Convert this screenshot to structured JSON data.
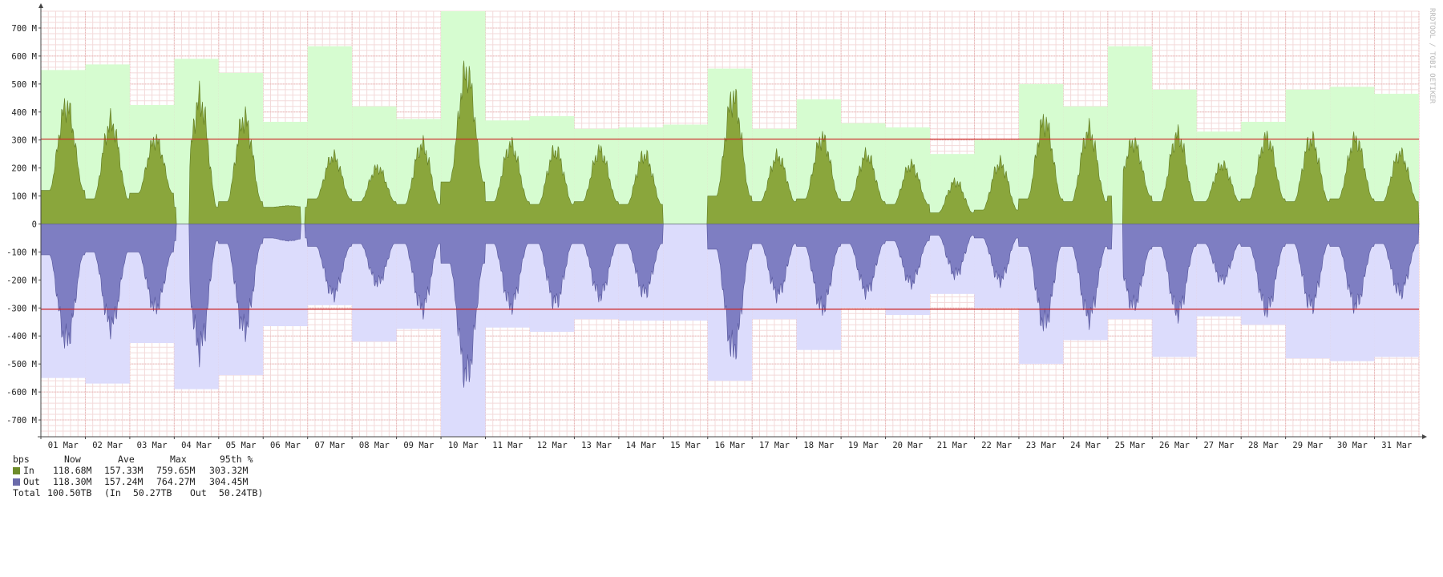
{
  "chart_data": {
    "type": "area",
    "watermark": "RRDTOOL / TOBI OETIKER",
    "y_unit": "bps",
    "ylim": [
      -760,
      760
    ],
    "y_ticks": [
      {
        "v": 700,
        "label": "700 M"
      },
      {
        "v": 600,
        "label": "600 M"
      },
      {
        "v": 500,
        "label": "500 M"
      },
      {
        "v": 400,
        "label": "400 M"
      },
      {
        "v": 300,
        "label": "300 M"
      },
      {
        "v": 200,
        "label": "200 M"
      },
      {
        "v": 100,
        "label": "100 M"
      },
      {
        "v": 0,
        "label": "0"
      },
      {
        "v": -100,
        "label": "-100 M"
      },
      {
        "v": -200,
        "label": "-200 M"
      },
      {
        "v": -300,
        "label": "-300 M"
      },
      {
        "v": -400,
        "label": "-400 M"
      },
      {
        "v": -500,
        "label": "-500 M"
      },
      {
        "v": -600,
        "label": "-600 M"
      },
      {
        "v": -700,
        "label": "-700 M"
      }
    ],
    "x_labels": [
      "01 Mar",
      "02 Mar",
      "03 Mar",
      "04 Mar",
      "05 Mar",
      "06 Mar",
      "07 Mar",
      "08 Mar",
      "09 Mar",
      "10 Mar",
      "11 Mar",
      "12 Mar",
      "13 Mar",
      "14 Mar",
      "15 Mar",
      "16 Mar",
      "17 Mar",
      "18 Mar",
      "19 Mar",
      "20 Mar",
      "21 Mar",
      "22 Mar",
      "23 Mar",
      "24 Mar",
      "25 Mar",
      "26 Mar",
      "27 Mar",
      "28 Mar",
      "29 Mar",
      "30 Mar",
      "31 Mar"
    ],
    "percentile95": {
      "in": 303.32,
      "out": 304.45
    },
    "daily_max": [
      {
        "day": "01 Mar",
        "in": 550,
        "out": 550
      },
      {
        "day": "02 Mar",
        "in": 570,
        "out": 570
      },
      {
        "day": "03 Mar",
        "in": 425,
        "out": 425
      },
      {
        "day": "04 Mar",
        "in": 590,
        "out": 590
      },
      {
        "day": "05 Mar",
        "in": 540,
        "out": 540
      },
      {
        "day": "06 Mar",
        "in": 365,
        "out": 365
      },
      {
        "day": "07 Mar",
        "in": 635,
        "out": 290
      },
      {
        "day": "08 Mar",
        "in": 420,
        "out": 420
      },
      {
        "day": "09 Mar",
        "in": 375,
        "out": 375
      },
      {
        "day": "10 Mar",
        "in": 760,
        "out": 760
      },
      {
        "day": "11 Mar",
        "in": 370,
        "out": 370
      },
      {
        "day": "12 Mar",
        "in": 385,
        "out": 385
      },
      {
        "day": "13 Mar",
        "in": 340,
        "out": 340
      },
      {
        "day": "14 Mar",
        "in": 345,
        "out": 345
      },
      {
        "day": "15 Mar",
        "in": 355,
        "out": 345
      },
      {
        "day": "16 Mar",
        "in": 555,
        "out": 560
      },
      {
        "day": "17 Mar",
        "in": 340,
        "out": 340
      },
      {
        "day": "18 Mar",
        "in": 445,
        "out": 450
      },
      {
        "day": "19 Mar",
        "in": 360,
        "out": 300
      },
      {
        "day": "20 Mar",
        "in": 345,
        "out": 325
      },
      {
        "day": "21 Mar",
        "in": 250,
        "out": 250
      },
      {
        "day": "22 Mar",
        "in": 300,
        "out": 300
      },
      {
        "day": "23 Mar",
        "in": 500,
        "out": 500
      },
      {
        "day": "24 Mar",
        "in": 420,
        "out": 415
      },
      {
        "day": "25 Mar",
        "in": 635,
        "out": 340
      },
      {
        "day": "26 Mar",
        "in": 480,
        "out": 475
      },
      {
        "day": "27 Mar",
        "in": 330,
        "out": 330
      },
      {
        "day": "28 Mar",
        "in": 365,
        "out": 360
      },
      {
        "day": "29 Mar",
        "in": 480,
        "out": 480
      },
      {
        "day": "30 Mar",
        "in": 490,
        "out": 490
      },
      {
        "day": "31 Mar",
        "in": 465,
        "out": 475
      }
    ],
    "series": [
      {
        "name": "In",
        "color": "#8aa63c",
        "max_color": "#d6fcd0"
      },
      {
        "name": "Out",
        "color": "#7e7ec2",
        "max_color": "#dcdcfc"
      }
    ],
    "daily_pattern": {
      "baseline_in": [
        120,
        90,
        110,
        60,
        80,
        60,
        90,
        80,
        70,
        150,
        80,
        70,
        80,
        70,
        80,
        100,
        80,
        90,
        80,
        70,
        40,
        50,
        90,
        80,
        100,
        80,
        80,
        90,
        80,
        90,
        80
      ],
      "peak_in": [
        420,
        360,
        300,
        440,
        375,
        65,
        240,
        200,
        280,
        540,
        280,
        260,
        260,
        245,
        0,
        450,
        240,
        305,
        245,
        210,
        150,
        215,
        365,
        330,
        290,
        315,
        210,
        305,
        300,
        300,
        250
      ],
      "baseline_out": [
        110,
        100,
        100,
        60,
        70,
        50,
        80,
        70,
        70,
        140,
        70,
        70,
        70,
        70,
        70,
        90,
        70,
        80,
        70,
        60,
        40,
        50,
        80,
        80,
        90,
        80,
        70,
        80,
        70,
        80,
        70
      ],
      "peak_out": [
        415,
        360,
        300,
        440,
        375,
        60,
        250,
        210,
        300,
        540,
        290,
        280,
        255,
        245,
        0,
        450,
        250,
        300,
        240,
        210,
        180,
        200,
        355,
        330,
        290,
        315,
        200,
        305,
        290,
        290,
        245
      ]
    },
    "gaps": [
      {
        "from_day": 4.05,
        "to_day": 4.35
      },
      {
        "from_day": 6.85,
        "to_day": 6.95
      },
      {
        "from_day": 15.0,
        "to_day": 15.5
      },
      {
        "from_day": 25.1,
        "to_day": 25.35
      }
    ]
  },
  "legend": {
    "header": {
      "unit": "bps",
      "now": "Now",
      "ave": "Ave",
      "max": "Max",
      "p95": "95th %"
    },
    "rows": [
      {
        "label": "In",
        "color": "#6e8c2a",
        "now": "118.68M",
        "ave": "157.33M",
        "max": "759.65M",
        "p95": "303.32M"
      },
      {
        "label": "Out",
        "color": "#6b6baa",
        "now": "118.30M",
        "ave": "157.24M",
        "max": "764.27M",
        "p95": "304.45M"
      }
    ],
    "total_label": "Total",
    "total": "100.50TB",
    "total_in_label": "(In",
    "total_in": "50.27TB",
    "total_out_label": "Out",
    "total_out": "50.24TB)"
  }
}
